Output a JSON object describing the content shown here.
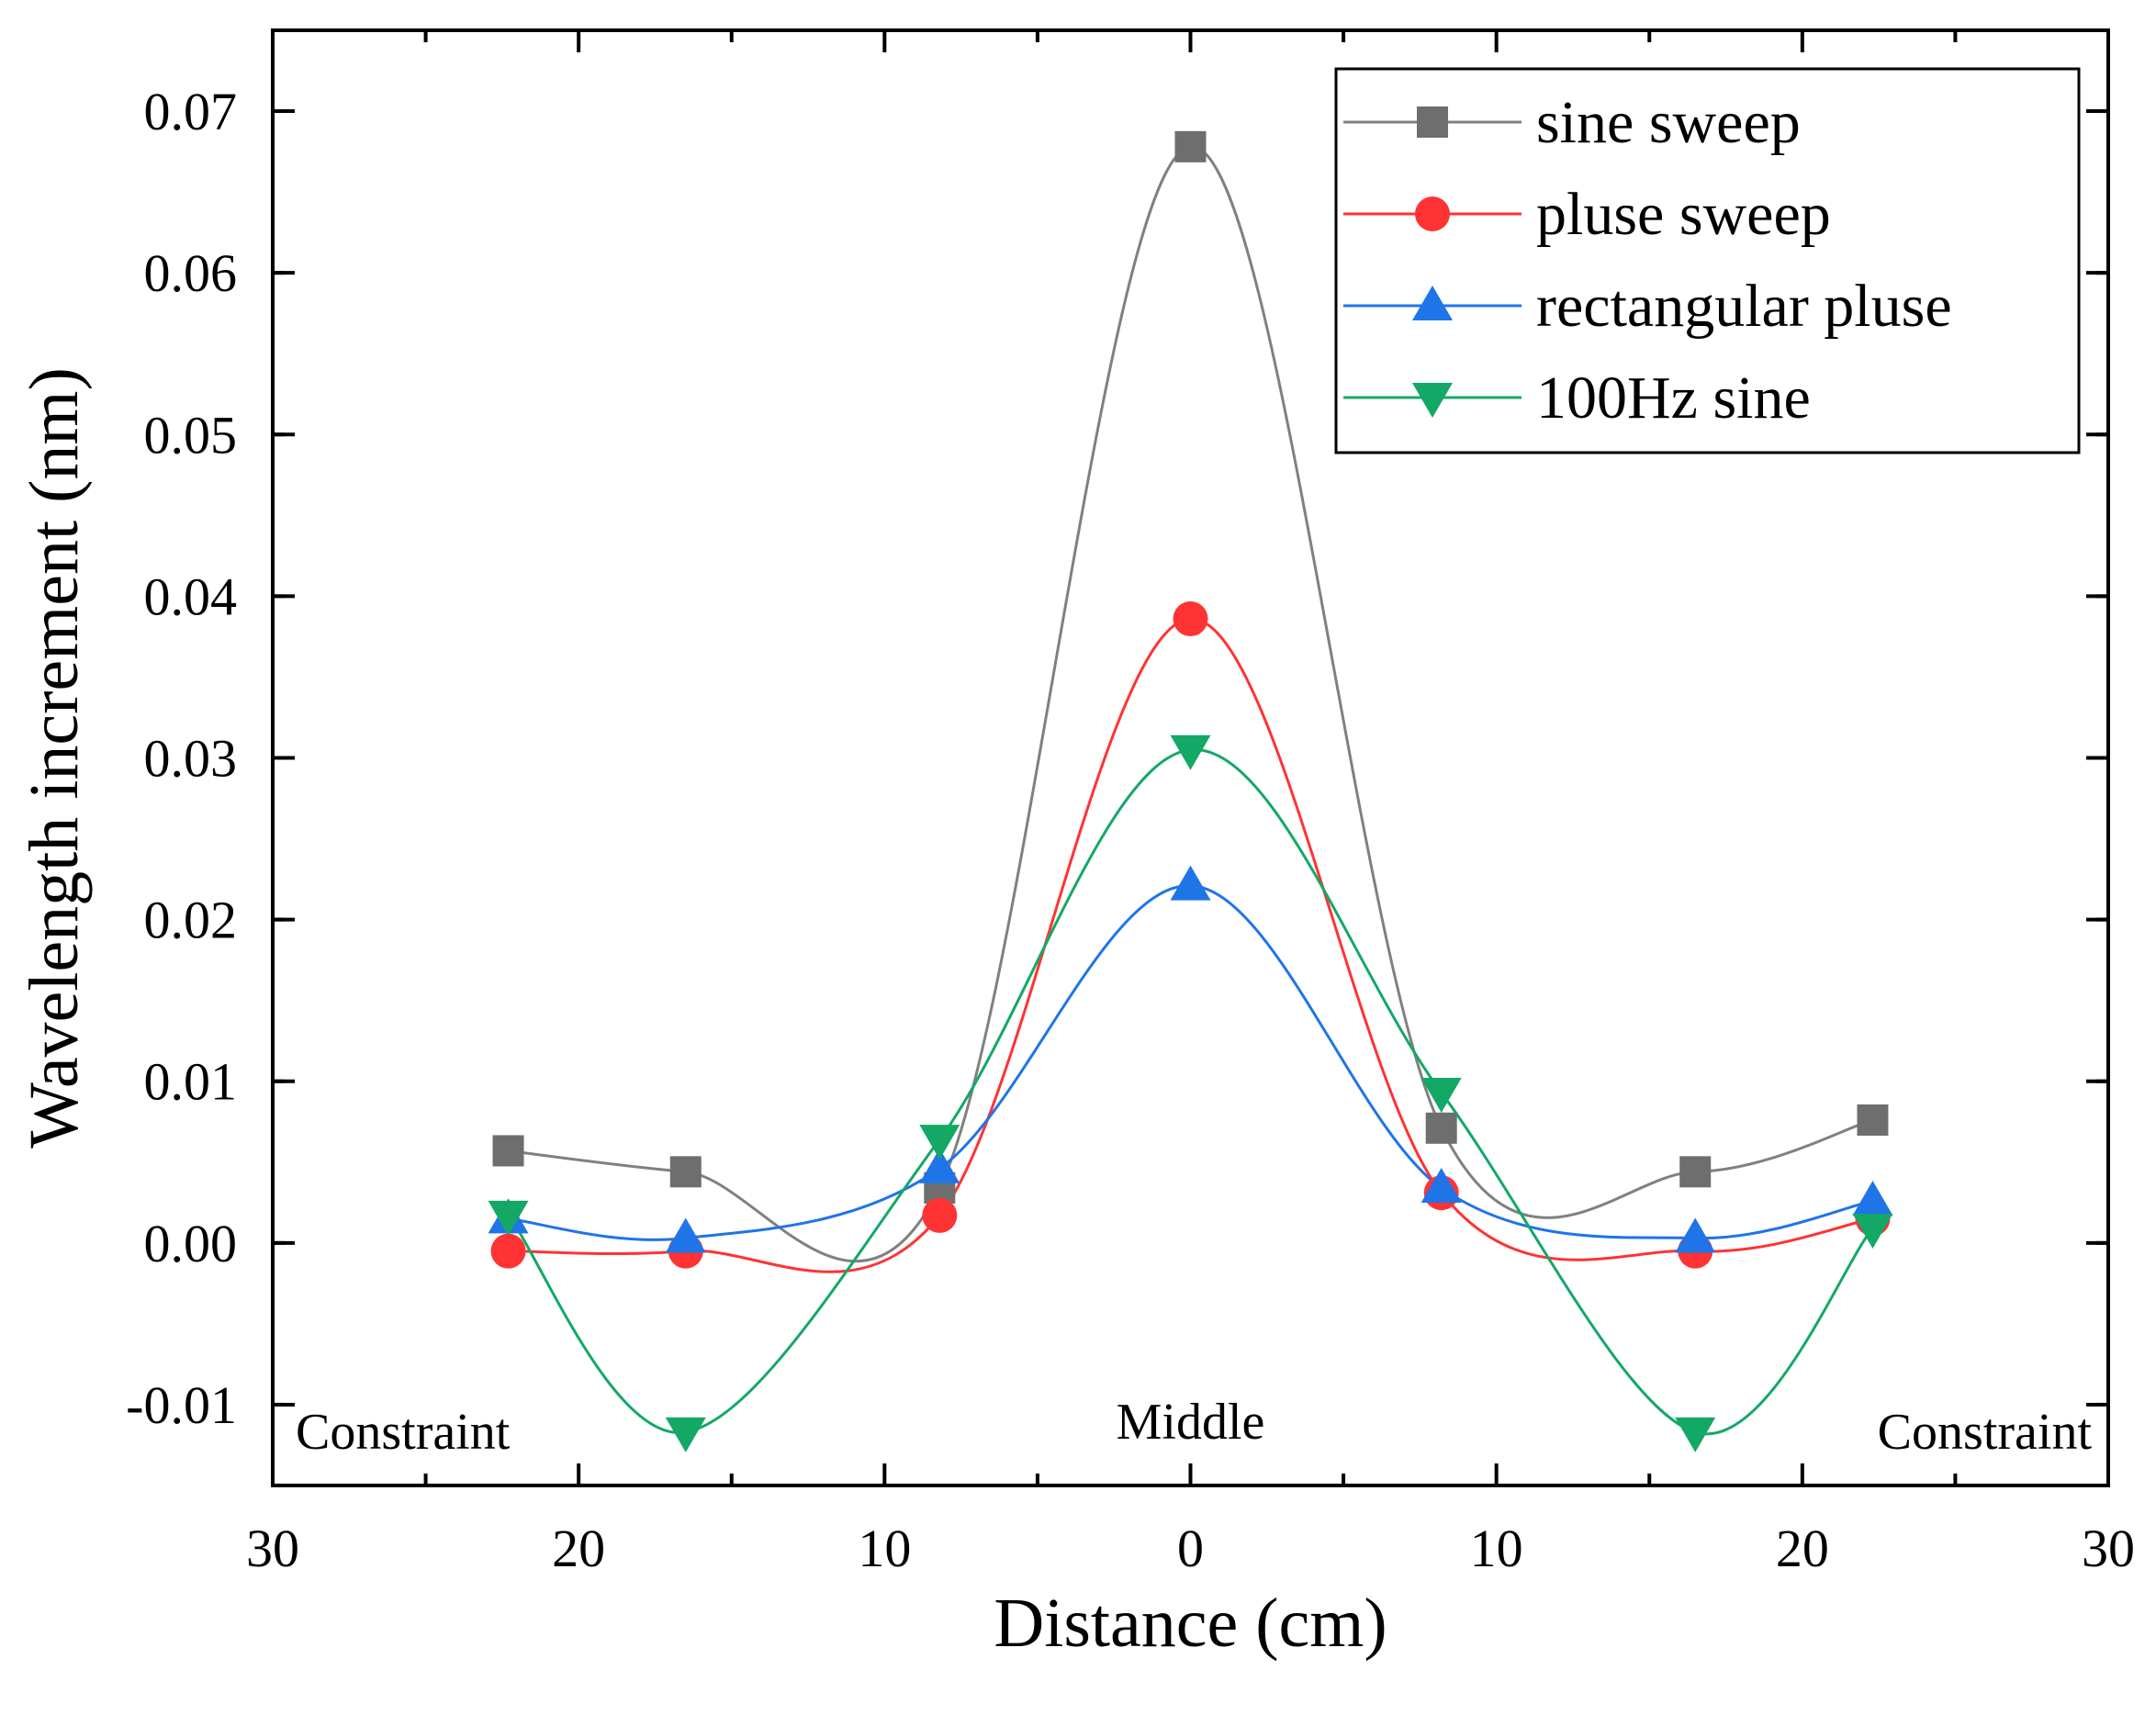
{
  "chart_data": {
    "type": "line",
    "title": "",
    "xlabel": "Distance (cm)",
    "ylabel": "Wavelength increment (nm)",
    "xlim": [
      -30,
      30
    ],
    "ylim": [
      -0.015,
      0.075
    ],
    "x_tick_values": [
      -30,
      -20,
      -10,
      0,
      10,
      20,
      30
    ],
    "x_tick_labels": [
      "30",
      "20",
      "10",
      "0",
      "10",
      "20",
      "30"
    ],
    "y_tick_values": [
      -0.01,
      0.0,
      0.01,
      0.02,
      0.03,
      0.04,
      0.05,
      0.06,
      0.07
    ],
    "y_tick_labels": [
      "-0.01",
      "0.00",
      "0.01",
      "0.02",
      "0.03",
      "0.04",
      "0.05",
      "0.06",
      "0.07"
    ],
    "grid": false,
    "legend_position": "top-right",
    "annotations": [
      {
        "text": "Constraint",
        "position": "bottom-left"
      },
      {
        "text": "Middle",
        "position": "bottom-center"
      },
      {
        "text": "Constraint",
        "position": "bottom-right"
      }
    ],
    "x": [
      -22.3,
      -16.5,
      -8.2,
      0,
      8.2,
      16.5,
      22.3
    ],
    "series": [
      {
        "name": "sine sweep",
        "marker": "square",
        "color": "#6e6e6e",
        "line_color": "#808080",
        "values": [
          0.0057,
          0.0044,
          0.0034,
          0.0678,
          0.0071,
          0.0044,
          0.0076
        ]
      },
      {
        "name": "pluse sweep",
        "marker": "circle",
        "color": "#ff3333",
        "line_color": "#ff3333",
        "values": [
          -0.0005,
          -0.0005,
          0.0017,
          0.0386,
          0.0031,
          -0.0005,
          0.0015
        ]
      },
      {
        "name": "rectangular pluse",
        "marker": "triangle-up",
        "color": "#1f74e8",
        "line_color": "#1f74e8",
        "values": [
          0.0015,
          0.0003,
          0.0046,
          0.0221,
          0.0034,
          0.0003,
          0.0026
        ]
      },
      {
        "name": "100Hz sine",
        "marker": "triangle-down",
        "color": "#14a867",
        "line_color": "#14a867",
        "values": [
          0.0017,
          -0.0117,
          0.0064,
          0.0305,
          0.0093,
          -0.0117,
          0.0009
        ]
      }
    ]
  }
}
